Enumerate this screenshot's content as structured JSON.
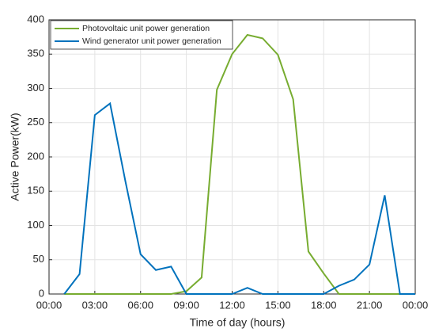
{
  "chart_data": {
    "type": "line",
    "xlabel": "Time of day (hours)",
    "ylabel": "Active Power(kW)",
    "x": [
      1,
      2,
      3,
      4,
      5,
      6,
      7,
      8,
      9,
      10,
      11,
      12,
      13,
      14,
      15,
      16,
      17,
      18,
      19,
      20,
      21,
      22,
      23,
      24
    ],
    "series": [
      {
        "name": "Photovoltaic unit power generation",
        "color": "#77ac30",
        "values": [
          0,
          0,
          0,
          0,
          0,
          0,
          0,
          0,
          4,
          24,
          298,
          350,
          378,
          373,
          349,
          284,
          62,
          30,
          0,
          0,
          0,
          0,
          0,
          0
        ]
      },
      {
        "name": "Wind generator unit power generation",
        "color": "#0072bd",
        "values": [
          0,
          29,
          261,
          278,
          165,
          58,
          35,
          40,
          0,
          0,
          0,
          0,
          9,
          0,
          0,
          0,
          0,
          0,
          12,
          21,
          43,
          144,
          0,
          0
        ]
      }
    ],
    "xlim": [
      0,
      24
    ],
    "xticks": [
      {
        "value": 0,
        "label": "00:00"
      },
      {
        "value": 3,
        "label": "03:00"
      },
      {
        "value": 6,
        "label": "06:00"
      },
      {
        "value": 9,
        "label": "09:00"
      },
      {
        "value": 12,
        "label": "12:00"
      },
      {
        "value": 15,
        "label": "15:00"
      },
      {
        "value": 18,
        "label": "18:00"
      },
      {
        "value": 21,
        "label": "21:00"
      },
      {
        "value": 24,
        "label": "00:00"
      }
    ],
    "ylim": [
      0,
      400
    ],
    "yticks": [
      0,
      50,
      100,
      150,
      200,
      250,
      300,
      350,
      400
    ],
    "grid": true,
    "legend": "top-left"
  }
}
